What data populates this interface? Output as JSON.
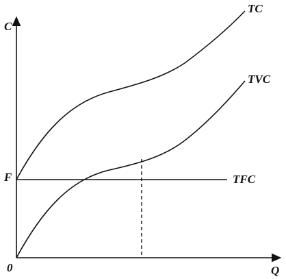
{
  "axes": {
    "y_label": "C",
    "x_label": "Q",
    "origin_label": "0",
    "fixed_label": "F"
  },
  "curves": {
    "tc": "TC",
    "tvc": "TVC",
    "tfc": "TFC"
  }
}
